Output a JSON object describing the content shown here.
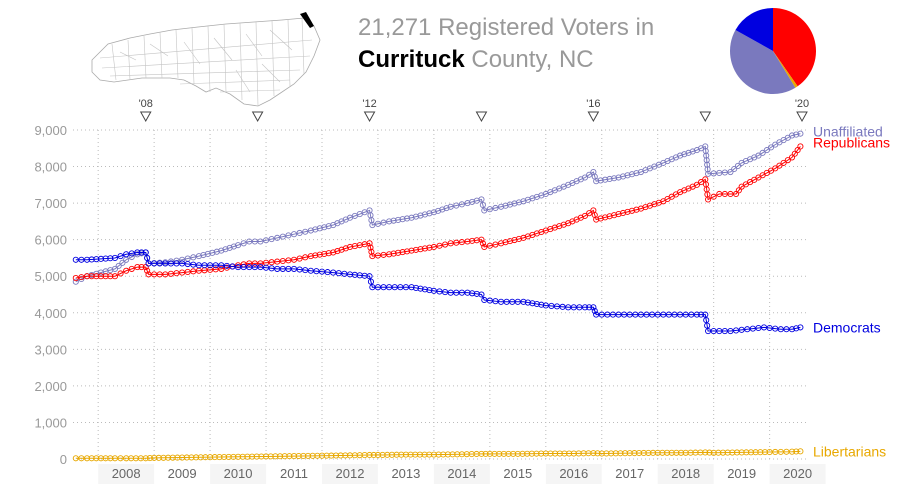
{
  "title": {
    "count": "21,271",
    "line1_rest": "Registered Voters in",
    "county": "Currituck",
    "line2_rest": "County, NC"
  },
  "colors": {
    "unaffiliated": "#7a79be",
    "republicans": "#ff0000",
    "democrats": "#0000e0",
    "libertarians": "#e8a800",
    "grid": "#bbbbbb",
    "axis_text": "#999999"
  },
  "chart_data": {
    "type": "line",
    "xlim": [
      2007.55,
      2020.65
    ],
    "ylim": [
      0,
      9000
    ],
    "yticks": [
      0,
      1000,
      2000,
      3000,
      4000,
      5000,
      6000,
      7000,
      8000,
      9000
    ],
    "ytick_labels": [
      "0",
      "1,000",
      "2,000",
      "3,000",
      "4,000",
      "5,000",
      "6,000",
      "7,000",
      "8,000",
      "9,000"
    ],
    "year_labels": [
      "2008",
      "2009",
      "2010",
      "2011",
      "2012",
      "2013",
      "2014",
      "2015",
      "2016",
      "2017",
      "2018",
      "2019",
      "2020"
    ],
    "election_markers": [
      {
        "x": 2008.85,
        "label": "'08"
      },
      {
        "x": 2010.85,
        "label": ""
      },
      {
        "x": 2012.85,
        "label": "'12"
      },
      {
        "x": 2014.85,
        "label": ""
      },
      {
        "x": 2016.85,
        "label": "'16"
      },
      {
        "x": 2018.85,
        "label": ""
      },
      {
        "x": 2020.85,
        "label": "'20"
      }
    ],
    "series": [
      {
        "name": "Unaffiliated",
        "key": "unaffiliated",
        "points": [
          [
            2007.6,
            4850
          ],
          [
            2007.8,
            5000
          ],
          [
            2008.3,
            5200
          ],
          [
            2008.5,
            5450
          ],
          [
            2008.7,
            5600
          ],
          [
            2008.85,
            5650
          ],
          [
            2008.9,
            5350
          ],
          [
            2009.2,
            5380
          ],
          [
            2009.5,
            5450
          ],
          [
            2009.8,
            5550
          ],
          [
            2010.2,
            5700
          ],
          [
            2010.5,
            5850
          ],
          [
            2010.7,
            5950
          ],
          [
            2010.9,
            5950
          ],
          [
            2011.2,
            6050
          ],
          [
            2011.5,
            6150
          ],
          [
            2011.8,
            6250
          ],
          [
            2012.2,
            6400
          ],
          [
            2012.5,
            6600
          ],
          [
            2012.85,
            6800
          ],
          [
            2012.9,
            6400
          ],
          [
            2013.2,
            6500
          ],
          [
            2013.6,
            6600
          ],
          [
            2014.0,
            6750
          ],
          [
            2014.3,
            6900
          ],
          [
            2014.6,
            7000
          ],
          [
            2014.85,
            7100
          ],
          [
            2014.9,
            6800
          ],
          [
            2015.2,
            6900
          ],
          [
            2015.6,
            7050
          ],
          [
            2016.0,
            7250
          ],
          [
            2016.4,
            7500
          ],
          [
            2016.7,
            7700
          ],
          [
            2016.85,
            7850
          ],
          [
            2016.9,
            7600
          ],
          [
            2017.3,
            7700
          ],
          [
            2017.7,
            7850
          ],
          [
            2018.1,
            8100
          ],
          [
            2018.4,
            8300
          ],
          [
            2018.7,
            8450
          ],
          [
            2018.85,
            8550
          ],
          [
            2018.9,
            7800
          ],
          [
            2019.3,
            7850
          ],
          [
            2019.5,
            8100
          ],
          [
            2019.8,
            8300
          ],
          [
            2020.1,
            8600
          ],
          [
            2020.4,
            8850
          ],
          [
            2020.55,
            8900
          ]
        ]
      },
      {
        "name": "Republicans",
        "key": "republicans",
        "points": [
          [
            2007.6,
            4950
          ],
          [
            2007.8,
            5000
          ],
          [
            2008.3,
            5000
          ],
          [
            2008.5,
            5150
          ],
          [
            2008.7,
            5250
          ],
          [
            2008.85,
            5250
          ],
          [
            2008.9,
            5050
          ],
          [
            2009.2,
            5050
          ],
          [
            2009.5,
            5100
          ],
          [
            2009.8,
            5150
          ],
          [
            2010.2,
            5200
          ],
          [
            2010.5,
            5300
          ],
          [
            2010.7,
            5350
          ],
          [
            2010.9,
            5350
          ],
          [
            2011.2,
            5400
          ],
          [
            2011.5,
            5450
          ],
          [
            2011.8,
            5550
          ],
          [
            2012.2,
            5650
          ],
          [
            2012.5,
            5800
          ],
          [
            2012.85,
            5900
          ],
          [
            2012.9,
            5550
          ],
          [
            2013.2,
            5600
          ],
          [
            2013.6,
            5700
          ],
          [
            2014.0,
            5800
          ],
          [
            2014.3,
            5900
          ],
          [
            2014.6,
            5950
          ],
          [
            2014.85,
            6000
          ],
          [
            2014.9,
            5800
          ],
          [
            2015.2,
            5900
          ],
          [
            2015.6,
            6050
          ],
          [
            2016.0,
            6250
          ],
          [
            2016.4,
            6450
          ],
          [
            2016.7,
            6650
          ],
          [
            2016.85,
            6800
          ],
          [
            2016.9,
            6550
          ],
          [
            2017.3,
            6700
          ],
          [
            2017.7,
            6850
          ],
          [
            2018.1,
            7050
          ],
          [
            2018.4,
            7300
          ],
          [
            2018.7,
            7500
          ],
          [
            2018.85,
            7650
          ],
          [
            2018.9,
            7100
          ],
          [
            2019.1,
            7250
          ],
          [
            2019.4,
            7250
          ],
          [
            2019.5,
            7450
          ],
          [
            2019.8,
            7700
          ],
          [
            2020.1,
            7950
          ],
          [
            2020.4,
            8250
          ],
          [
            2020.55,
            8550
          ]
        ]
      },
      {
        "name": "Democrats",
        "key": "democrats",
        "points": [
          [
            2007.6,
            5450
          ],
          [
            2007.8,
            5450
          ],
          [
            2008.3,
            5500
          ],
          [
            2008.5,
            5600
          ],
          [
            2008.7,
            5650
          ],
          [
            2008.85,
            5650
          ],
          [
            2008.9,
            5350
          ],
          [
            2009.2,
            5350
          ],
          [
            2009.5,
            5350
          ],
          [
            2009.8,
            5300
          ],
          [
            2010.2,
            5300
          ],
          [
            2010.5,
            5250
          ],
          [
            2010.7,
            5250
          ],
          [
            2010.9,
            5250
          ],
          [
            2011.2,
            5200
          ],
          [
            2011.5,
            5200
          ],
          [
            2011.8,
            5150
          ],
          [
            2012.2,
            5100
          ],
          [
            2012.5,
            5050
          ],
          [
            2012.85,
            5000
          ],
          [
            2012.9,
            4700
          ],
          [
            2013.2,
            4700
          ],
          [
            2013.6,
            4700
          ],
          [
            2014.0,
            4600
          ],
          [
            2014.3,
            4550
          ],
          [
            2014.6,
            4550
          ],
          [
            2014.85,
            4500
          ],
          [
            2014.9,
            4350
          ],
          [
            2015.2,
            4300
          ],
          [
            2015.6,
            4300
          ],
          [
            2016.0,
            4200
          ],
          [
            2016.4,
            4150
          ],
          [
            2016.7,
            4150
          ],
          [
            2016.85,
            4150
          ],
          [
            2016.9,
            3950
          ],
          [
            2017.3,
            3950
          ],
          [
            2017.7,
            3950
          ],
          [
            2018.1,
            3950
          ],
          [
            2018.4,
            3950
          ],
          [
            2018.7,
            3950
          ],
          [
            2018.85,
            3950
          ],
          [
            2018.9,
            3500
          ],
          [
            2019.3,
            3500
          ],
          [
            2019.6,
            3550
          ],
          [
            2019.9,
            3600
          ],
          [
            2020.2,
            3550
          ],
          [
            2020.4,
            3550
          ],
          [
            2020.55,
            3600
          ]
        ]
      },
      {
        "name": "Libertarians",
        "key": "libertarians",
        "points": [
          [
            2007.6,
            20
          ],
          [
            2007.8,
            20
          ],
          [
            2008.3,
            20
          ],
          [
            2008.5,
            20
          ],
          [
            2008.85,
            20
          ],
          [
            2009.0,
            30
          ],
          [
            2009.5,
            40
          ],
          [
            2010.0,
            50
          ],
          [
            2010.5,
            60
          ],
          [
            2011.0,
            70
          ],
          [
            2011.5,
            80
          ],
          [
            2012.0,
            90
          ],
          [
            2012.5,
            100
          ],
          [
            2012.85,
            110
          ],
          [
            2013.0,
            110
          ],
          [
            2013.5,
            120
          ],
          [
            2014.0,
            120
          ],
          [
            2014.5,
            130
          ],
          [
            2014.85,
            140
          ],
          [
            2015.0,
            140
          ],
          [
            2015.5,
            140
          ],
          [
            2016.0,
            150
          ],
          [
            2016.5,
            150
          ],
          [
            2016.85,
            160
          ],
          [
            2017.0,
            150
          ],
          [
            2017.5,
            160
          ],
          [
            2018.0,
            170
          ],
          [
            2018.5,
            170
          ],
          [
            2018.85,
            180
          ],
          [
            2019.0,
            170
          ],
          [
            2019.5,
            180
          ],
          [
            2020.0,
            190
          ],
          [
            2020.4,
            200
          ],
          [
            2020.55,
            210
          ]
        ]
      }
    ],
    "pie": [
      {
        "key": "republicans",
        "value": 40.3
      },
      {
        "key": "libertarians",
        "value": 1.0
      },
      {
        "key": "unaffiliated",
        "value": 41.8
      },
      {
        "key": "democrats",
        "value": 16.9
      }
    ]
  }
}
